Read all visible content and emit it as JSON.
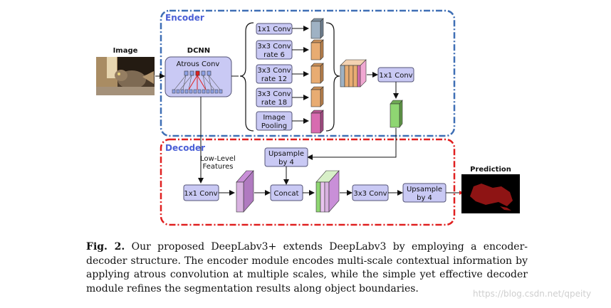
{
  "encoder": {
    "title": "Encoder"
  },
  "decoder": {
    "title": "Decoder"
  },
  "input": {
    "title": "Image"
  },
  "dcnn": {
    "title": "DCNN",
    "atrous_label": "Atrous Conv"
  },
  "aspp": {
    "conv1": "1x1 Conv",
    "conv3_6": [
      "3x3 Conv",
      "rate 6"
    ],
    "conv3_12": [
      "3x3 Conv",
      "rate 12"
    ],
    "conv3_18": [
      "3x3 Conv",
      "rate 18"
    ],
    "pool": [
      "Image",
      "Pooling"
    ]
  },
  "encoder_conv": "1x1 Conv",
  "decoder_blocks": {
    "low_level": [
      "Low-Level",
      "Features"
    ],
    "conv1": "1x1 Conv",
    "upsample1": [
      "Upsample",
      "by 4"
    ],
    "concat": "Concat",
    "conv3": "3x3 Conv",
    "upsample2": [
      "Upsample",
      "by 4"
    ]
  },
  "output": {
    "title": "Prediction"
  },
  "caption": {
    "fig": "Fig. 2.",
    "text": "Our proposed DeepLabv3+ extends DeepLabv3 by employing a encoder-decoder structure. The encoder module encodes multi-scale contextual information by applying atrous convolution at multiple scales, while the simple yet effective decoder module refines the segmentation results along object boundaries."
  },
  "watermark": "https://blog.csdn.net/qpeity",
  "colors": {
    "encoder_border": "#3f6fb5",
    "decoder_border": "#e02020",
    "box_fill": "#c9c9f4",
    "feat_gray": "#9fb2c4",
    "feat_orange": "#e8ac72",
    "feat_pink": "#d86bb0",
    "feat_green": "#8fd672",
    "feat_violet": "#d8b2e0"
  }
}
